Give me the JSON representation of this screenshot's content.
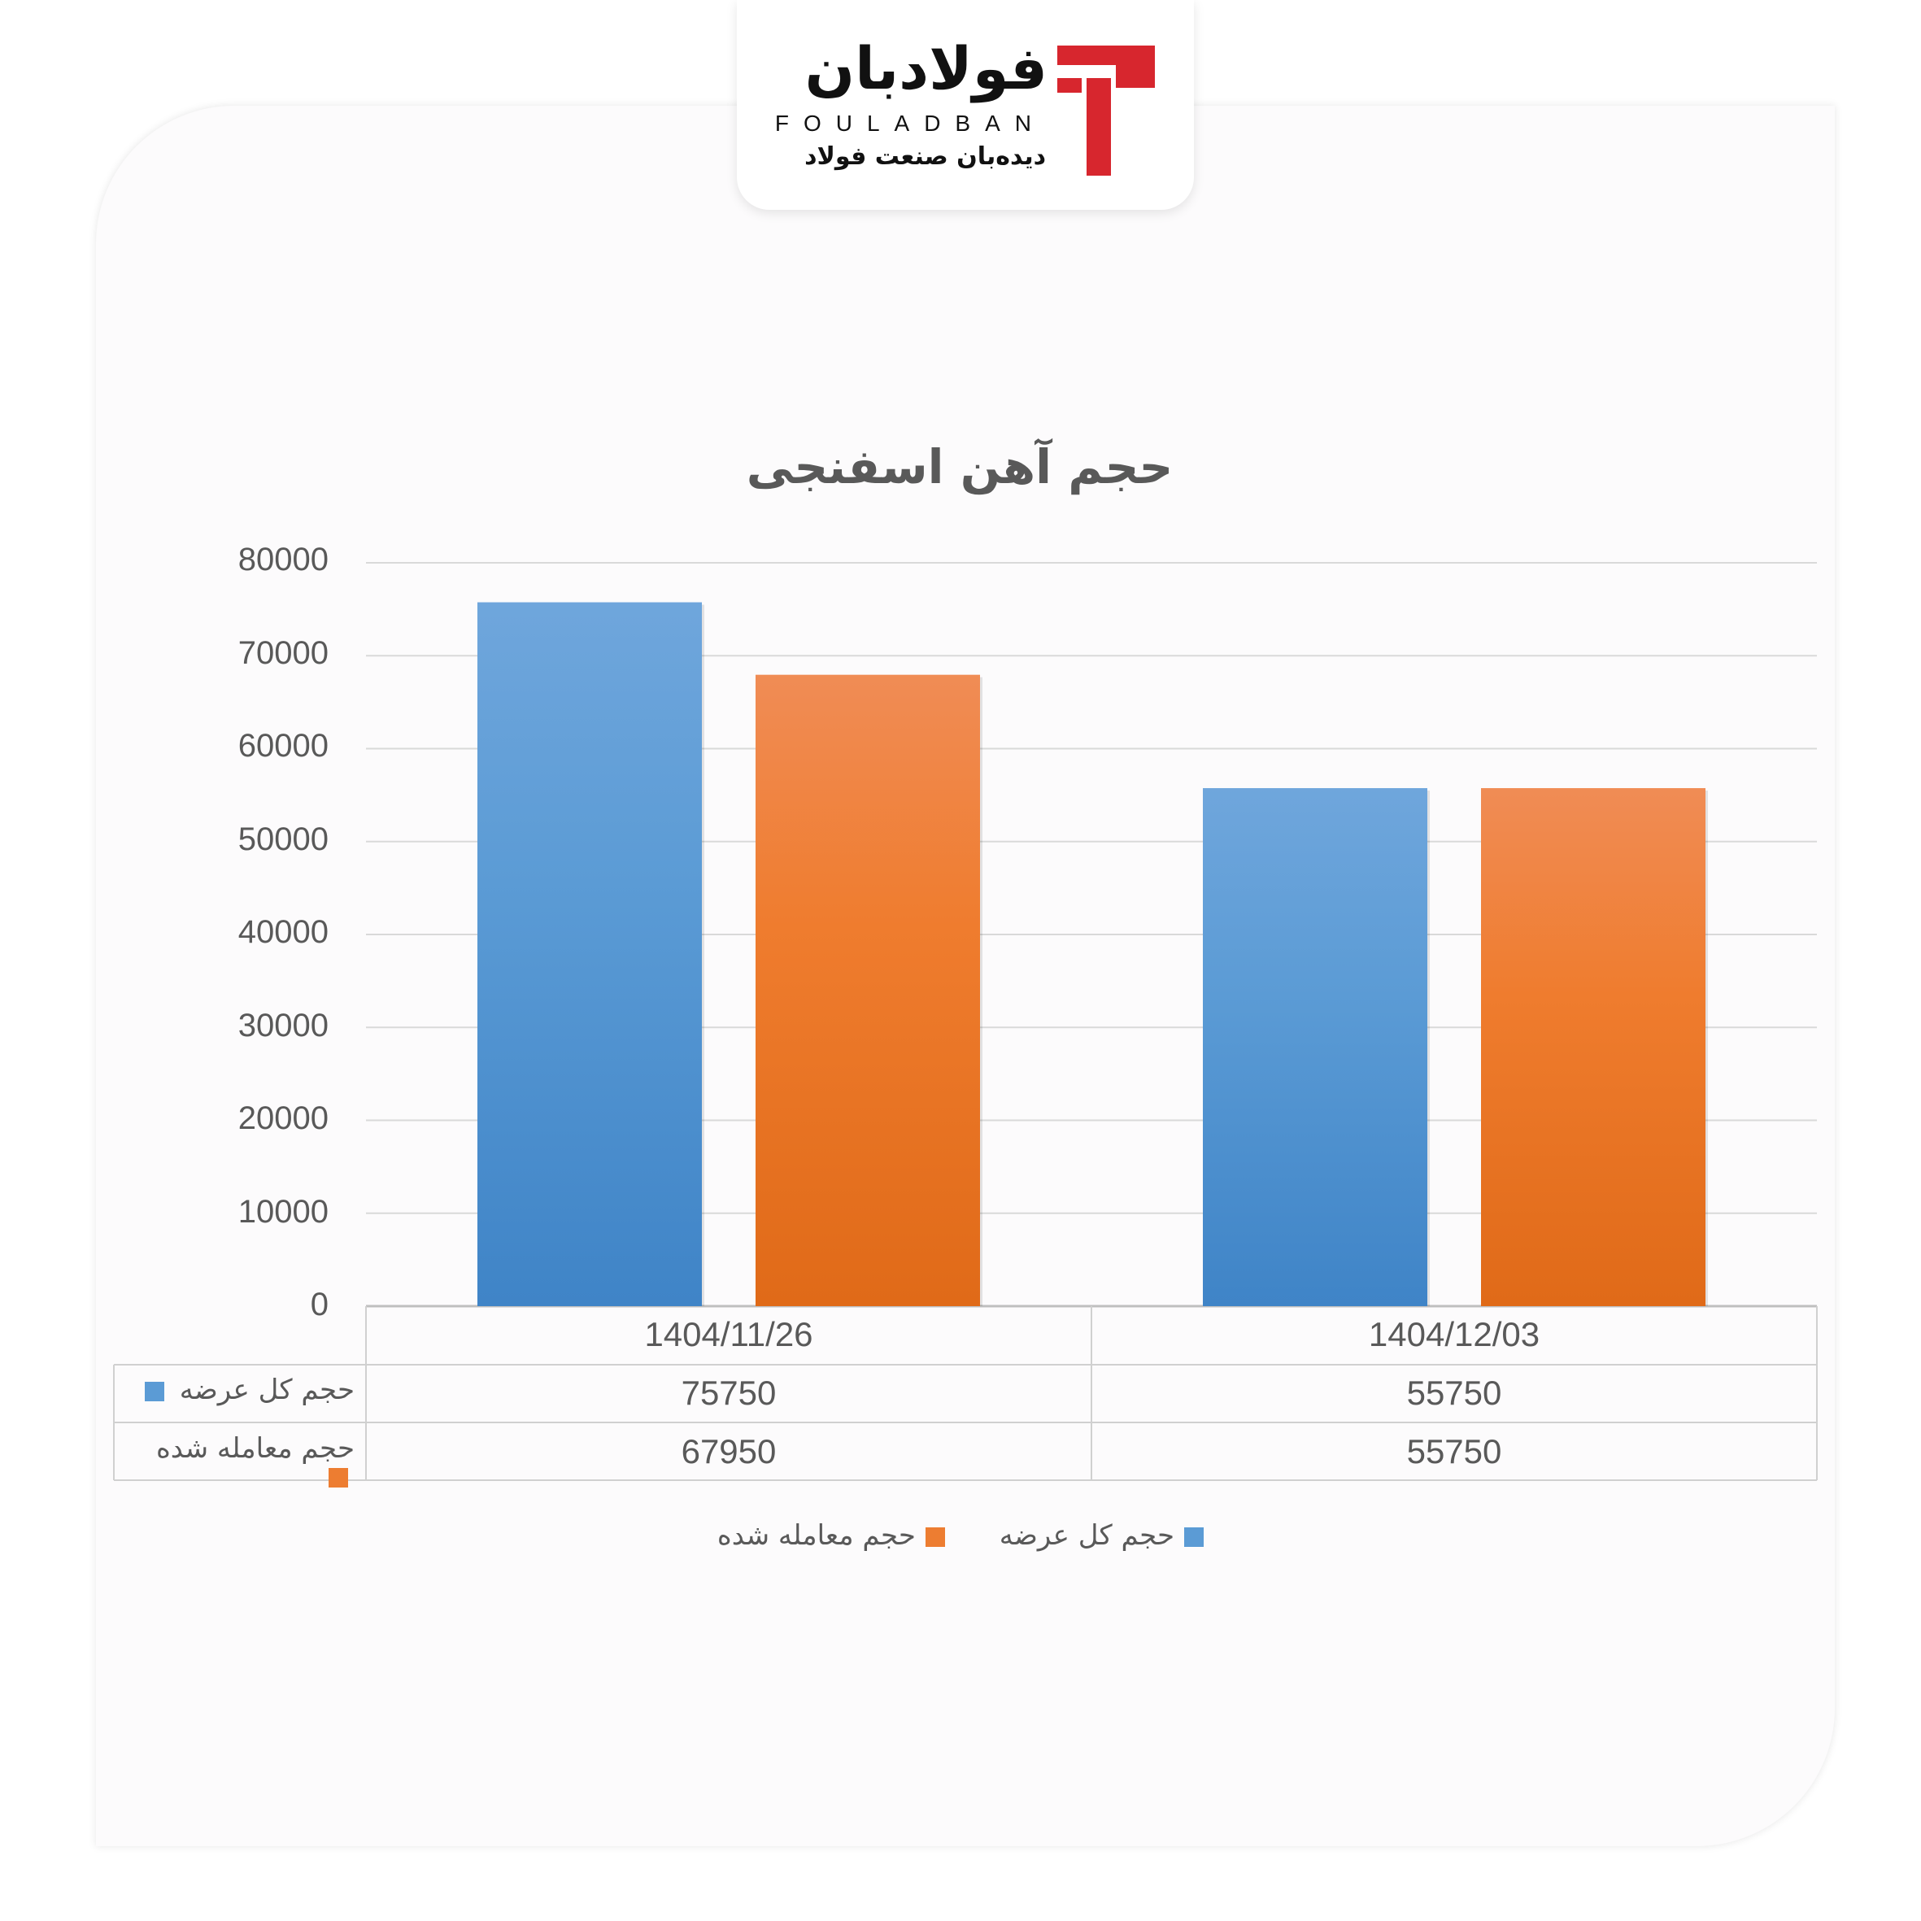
{
  "brand": {
    "name_fa": "فولادبان",
    "name_en": "FOULADBAN",
    "tagline": "دیده‌بان صنعت فولاد",
    "accent_color": "#d7262e"
  },
  "chart_data": {
    "type": "bar",
    "title": "حجم آهن اسفنجی",
    "categories": [
      "1404/11/26",
      "1404/12/03"
    ],
    "series": [
      {
        "name": "حجم کل عرضه",
        "values": [
          75750,
          55750
        ],
        "color": "#5b9bd5"
      },
      {
        "name": "حجم معامله شده",
        "values": [
          67950,
          55750
        ],
        "color": "#ed7d31"
      }
    ],
    "yticks": [
      "80000",
      "70000",
      "60000",
      "50000",
      "40000",
      "30000",
      "20000",
      "10000",
      "0"
    ],
    "ylim": [
      0,
      80000
    ],
    "grid": true,
    "legend_position": "bottom",
    "data_table": true
  }
}
